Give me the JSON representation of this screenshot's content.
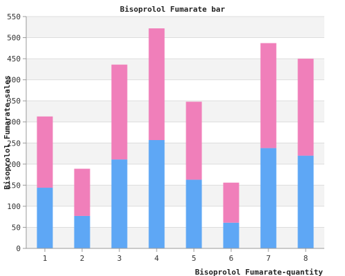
{
  "chart_data": {
    "type": "bar",
    "stacked": true,
    "title": "Bisoprolol Fumarate bar",
    "xlabel": "Bisoprolol Fumarate-quantity",
    "ylabel": "Bisoprolol Fumarate-sales",
    "categories": [
      "1",
      "2",
      "3",
      "4",
      "5",
      "6",
      "7",
      "8"
    ],
    "series": [
      {
        "values": [
          144,
          77,
          211,
          257,
          163,
          61,
          238,
          220
        ],
        "color": "#5ea7f5"
      },
      {
        "values": [
          169,
          112,
          225,
          265,
          185,
          95,
          249,
          230
        ],
        "color": "#f07fba"
      }
    ],
    "ylim": [
      0,
      550
    ],
    "yticks": [
      "0",
      "50",
      "100",
      "150",
      "200",
      "250",
      "300",
      "350",
      "400",
      "450",
      "500",
      "550"
    ],
    "grid": true,
    "legend": "none"
  }
}
